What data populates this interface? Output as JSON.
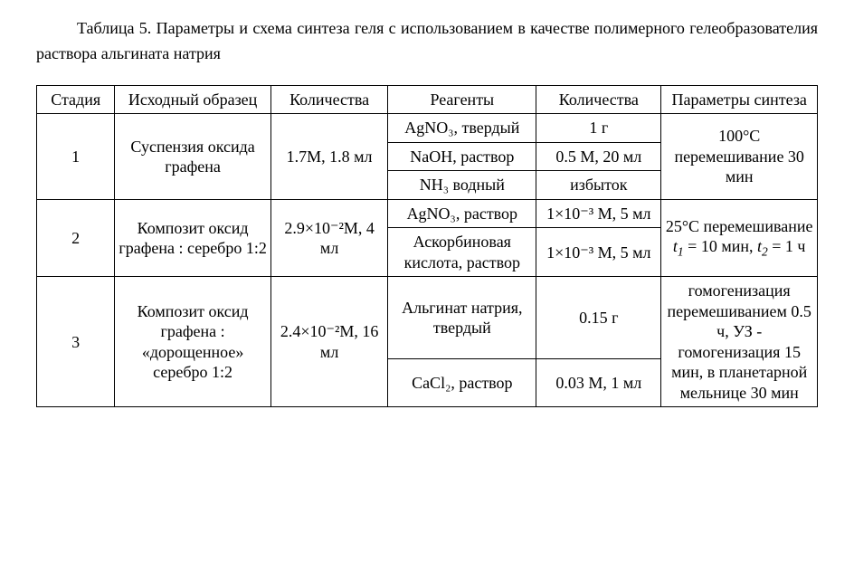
{
  "caption": "Таблица 5. Параметры и схема синтеза геля с использованием в качестве полимерного гелеобразователия раствора альгината натрия",
  "headers": {
    "c1": "Стадия",
    "c2": "Исходный образец",
    "c3": "Количества",
    "c4": "Реагенты",
    "c5": "Количества",
    "c6": "Параметры синтеза"
  },
  "rows": {
    "s1": {
      "stage": "1",
      "sample": "Суспензия оксида графена",
      "qty": "1.7М, 1.8 мл",
      "params": "100°С перемешивание 30 мин"
    },
    "s1r1": {
      "reagent": "AgNO₃, твердый",
      "rqty": "1 г"
    },
    "s1r2": {
      "reagent": "NaOH, раствор",
      "rqty": "0.5 М, 20 мл"
    },
    "s1r3": {
      "reagent": "NH₃ водный",
      "rqty": "избыток"
    },
    "s2": {
      "stage": "2",
      "sample": "Композит оксид графена : серебро 1:2",
      "qty": "2.9×10⁻²М, 4 мл",
      "params_html": "25°С перемешивание <i>t<sub>1</sub></i> = 10 мин, <i>t<sub>2</sub></i> = 1 ч"
    },
    "s2r1": {
      "reagent": "AgNO₃, раствор",
      "rqty": "1×10⁻³ М, 5 мл"
    },
    "s2r2": {
      "reagent": "Аскорбиновая кислота, раствор",
      "rqty": "1×10⁻³ М, 5 мл"
    },
    "s3": {
      "stage": "3",
      "sample": "Композит оксид графена : «дорощенное» серебро 1:2",
      "qty": "2.4×10⁻²М, 16 мл",
      "params": "гомогенизация перемешиванием 0.5 ч, УЗ - гомогенизация 15 мин, в планетарной мельнице 30 мин"
    },
    "s3r1": {
      "reagent": "Альгинат натрия, твердый",
      "rqty": "0.15 г"
    },
    "s3r2": {
      "reagent": "CaCl₂, раствор",
      "rqty": "0.03 М, 1 мл"
    }
  },
  "style": {
    "font_family": "Times New Roman",
    "font_size_pt": 14,
    "border_color": "#000000",
    "background_color": "#ffffff",
    "text_color": "#000000"
  }
}
